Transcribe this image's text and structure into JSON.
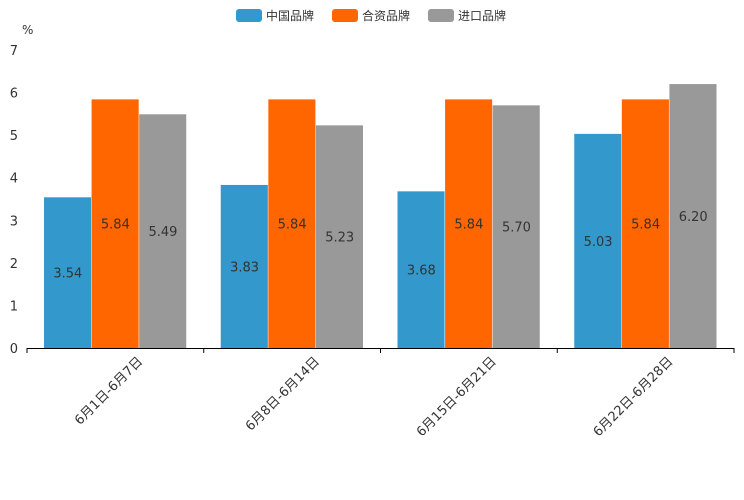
{
  "chart_data": {
    "type": "bar",
    "title": "",
    "xlabel": "",
    "ylabel": "%",
    "ylim": [
      0,
      7
    ],
    "yticks": [
      "0",
      "1",
      "2",
      "3",
      "4",
      "5",
      "6",
      "7"
    ],
    "grid": false,
    "legend_position": "top-center",
    "categories": [
      "6月1日-6月7日",
      "6月8日-6月14日",
      "6月15日-6月21日",
      "6月22日-6月28日"
    ],
    "series": [
      {
        "name": "中国品牌",
        "color": "#3399cc",
        "values": [
          3.54,
          3.83,
          3.68,
          5.03
        ],
        "labels": [
          "3.54",
          "3.83",
          "3.68",
          "5.03"
        ]
      },
      {
        "name": "合资品牌",
        "color": "#ff6600",
        "values": [
          5.84,
          5.84,
          5.84,
          5.84
        ],
        "labels": [
          "5.84",
          "5.84",
          "5.84",
          "5.84"
        ]
      },
      {
        "name": "进口品牌",
        "color": "#999999",
        "values": [
          5.49,
          5.23,
          5.7,
          6.2
        ],
        "labels": [
          "5.49",
          "5.23",
          "5.70",
          "6.20"
        ]
      }
    ]
  }
}
